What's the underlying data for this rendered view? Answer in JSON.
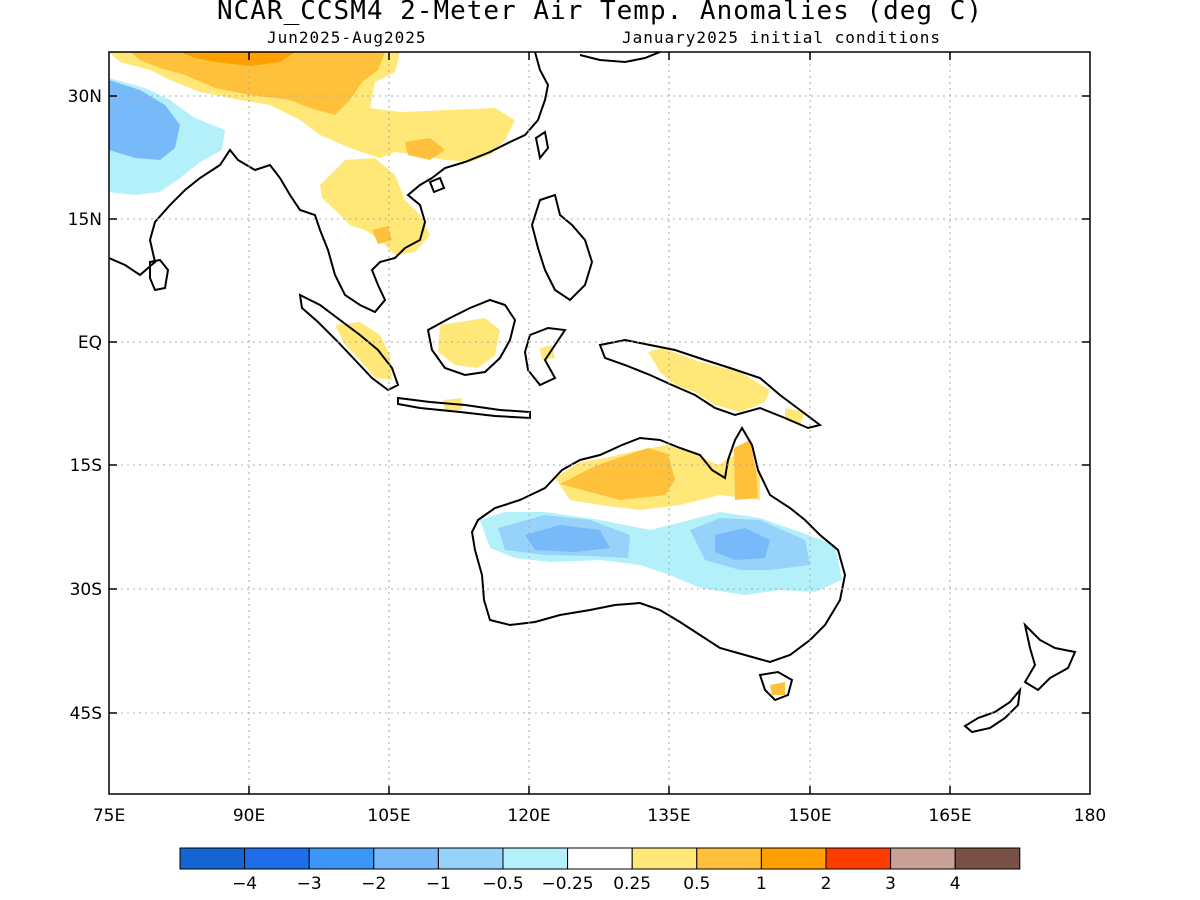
{
  "title": "NCAR_CCSM4 2-Meter Air Temp. Anomalies (deg C)",
  "subtitle_left": "Jun2025-Aug2025",
  "subtitle_right": "January2025 initial conditions",
  "lat_ticks": [
    "30N",
    "15N",
    "EQ",
    "15S",
    "30S",
    "45S"
  ],
  "lon_ticks": [
    "75E",
    "90E",
    "105E",
    "120E",
    "135E",
    "150E",
    "165E",
    "180"
  ],
  "colorbar": {
    "colors": [
      "#1464d2",
      "#1e6eeb",
      "#3c96f5",
      "#78b9fa",
      "#96d2fa",
      "#b4f0fa",
      "#ffffff",
      "#ffe878",
      "#ffc03c",
      "#ffa000",
      "#ff3c00",
      "#c8a096",
      "#785046"
    ],
    "labels": [
      "-4",
      "-3",
      "-2",
      "-1",
      "-0.5",
      "-0.25",
      "0.25",
      "0.5",
      "1",
      "2",
      "3",
      "4"
    ]
  },
  "colors": {
    "anom_pos_05": "#ffe878",
    "anom_pos_1": "#ffc03c",
    "anom_pos_2": "#ffa000",
    "anom_neg_025": "#b4f0fa",
    "anom_neg_05": "#96d2fa",
    "anom_neg_1": "#78b9fa"
  }
}
